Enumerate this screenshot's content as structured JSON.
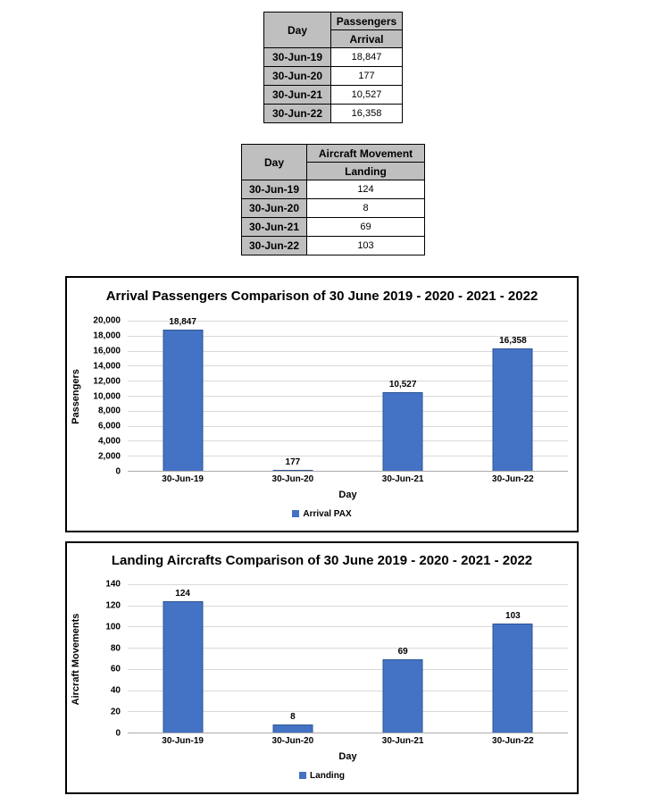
{
  "colors": {
    "bar": "#4472C4",
    "bar_edge": "#2E5693",
    "table_header_bg": "#BFBFBF",
    "gridline": "#D9D9D9",
    "chart_border": "#000000"
  },
  "tables": [
    {
      "name": "passengers",
      "corner_header": "Day",
      "group_header": "Passengers",
      "sub_header": "Arrival",
      "rows": [
        {
          "day": "30-Jun-19",
          "value": "18,847"
        },
        {
          "day": "30-Jun-20",
          "value": "177"
        },
        {
          "day": "30-Jun-21",
          "value": "10,527"
        },
        {
          "day": "30-Jun-22",
          "value": "16,358"
        }
      ]
    },
    {
      "name": "aircraft-movement",
      "corner_header": "Day",
      "group_header": "Aircraft Movement",
      "sub_header": "Landing",
      "rows": [
        {
          "day": "30-Jun-19",
          "value": "124"
        },
        {
          "day": "30-Jun-20",
          "value": "8"
        },
        {
          "day": "30-Jun-21",
          "value": "69"
        },
        {
          "day": "30-Jun-22",
          "value": "103"
        }
      ]
    }
  ],
  "chart_data": [
    {
      "type": "bar",
      "title": "Arrival Passengers Comparison of 30 June 2019 - 2020 - 2021 - 2022",
      "categories": [
        "30-Jun-19",
        "30-Jun-20",
        "30-Jun-21",
        "30-Jun-22"
      ],
      "values": [
        18847,
        177,
        10527,
        16358
      ],
      "data_labels": [
        "18,847",
        "177",
        "10,527",
        "16,358"
      ],
      "xlabel": "Day",
      "ylabel": "Passengers",
      "ylim": [
        0,
        20000
      ],
      "ytick_step": 2000,
      "yticks": [
        "20,000",
        "18,000",
        "16,000",
        "14,000",
        "12,000",
        "10,000",
        "8,000",
        "6,000",
        "4,000",
        "2,000",
        "0"
      ],
      "grid": true,
      "legend": "Arrival PAX",
      "legend_position": "bottom",
      "bar_color": "#4472C4"
    },
    {
      "type": "bar",
      "title": "Landing Aircrafts Comparison of 30 June 2019 - 2020 - 2021 - 2022",
      "categories": [
        "30-Jun-19",
        "30-Jun-20",
        "30-Jun-21",
        "30-Jun-22"
      ],
      "values": [
        124,
        8,
        69,
        103
      ],
      "data_labels": [
        "124",
        "8",
        "69",
        "103"
      ],
      "xlabel": "Day",
      "ylabel": "Aircraft Movements",
      "ylim": [
        0,
        140
      ],
      "ytick_step": 20,
      "yticks": [
        "140",
        "120",
        "100",
        "80",
        "60",
        "40",
        "20",
        "0"
      ],
      "grid": true,
      "legend": "Landing",
      "legend_position": "bottom",
      "bar_color": "#4472C4"
    }
  ]
}
